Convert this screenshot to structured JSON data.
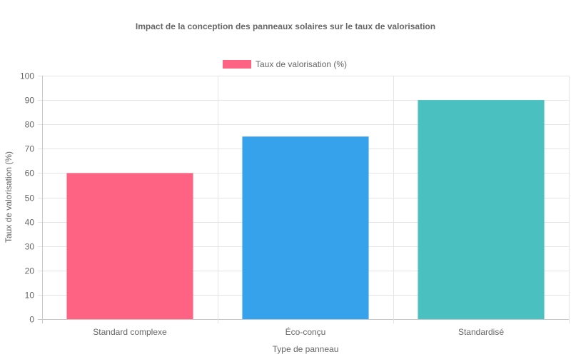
{
  "chart_data": {
    "type": "bar",
    "title": "Impact de la conception des panneaux solaires sur le taux de valorisation",
    "xlabel": "Type de panneau",
    "ylabel": "Taux de valorisation (%)",
    "categories": [
      "Standard complexe",
      "Éco-conçu",
      "Standardisé"
    ],
    "series": [
      {
        "name": "Taux de valorisation (%)",
        "values": [
          60,
          75,
          90
        ],
        "colors": [
          "#ff6384",
          "#36a2eb",
          "#4bc0c0"
        ],
        "legend_color": "#ff6384"
      }
    ],
    "ylim": [
      0,
      100
    ],
    "yticks": [
      0,
      10,
      20,
      30,
      40,
      50,
      60,
      70,
      80,
      90,
      100
    ],
    "grid": true,
    "legend_position": "top"
  }
}
